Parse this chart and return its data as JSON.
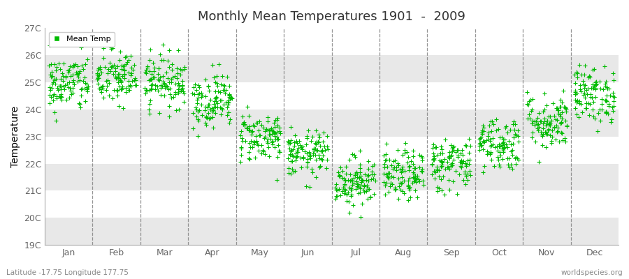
{
  "title": "Monthly Mean Temperatures 1901  -  2009",
  "ylabel": "Temperature",
  "background_color": "#ffffff",
  "plot_bg_color": "#ffffff",
  "stripe_color": "#e8e8e8",
  "marker_color": "#00bb00",
  "marker_size": 14,
  "ylim": [
    19,
    27
  ],
  "ytick_labels": [
    "19C",
    "20C",
    "21C",
    "22C",
    "23C",
    "24C",
    "25C",
    "26C",
    "27C"
  ],
  "ytick_values": [
    19,
    20,
    21,
    22,
    23,
    24,
    25,
    26,
    27
  ],
  "months": [
    "Jan",
    "Feb",
    "Mar",
    "Apr",
    "May",
    "Jun",
    "Jul",
    "Aug",
    "Sep",
    "Oct",
    "Nov",
    "Dec"
  ],
  "monthly_means": [
    24.95,
    25.15,
    25.05,
    24.35,
    23.0,
    22.35,
    21.35,
    21.55,
    22.0,
    22.75,
    23.55,
    24.55
  ],
  "monthly_std": [
    0.52,
    0.52,
    0.48,
    0.5,
    0.46,
    0.42,
    0.46,
    0.46,
    0.5,
    0.5,
    0.52,
    0.52
  ],
  "n_years": 109,
  "legend_label": "Mean Temp",
  "footnote_left": "Latitude -17.75 Longitude 177.75",
  "footnote_right": "worldspecies.org",
  "vline_color": "#888888",
  "vline_style": "--"
}
